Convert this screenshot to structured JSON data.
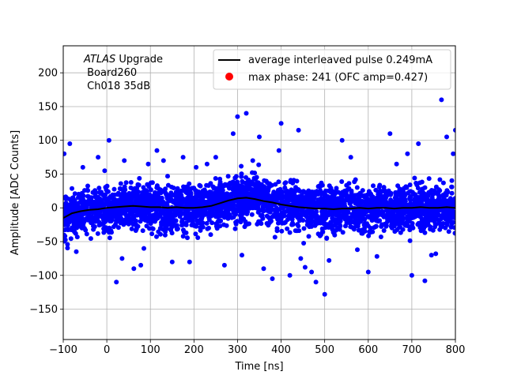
{
  "chart_data": {
    "type": "scatter",
    "title": "",
    "xlabel": "Time [ns]",
    "ylabel": "Amplitude [ADC Counts]",
    "xlim": [
      -100,
      800
    ],
    "ylim": [
      -195,
      240
    ],
    "xticks": [
      -100,
      0,
      100,
      200,
      300,
      400,
      500,
      600,
      700,
      800
    ],
    "yticks": [
      -150,
      -100,
      -50,
      0,
      50,
      100,
      150,
      200
    ],
    "grid": true,
    "legend_position": "top-right",
    "annotation": {
      "line1_italic": "ATLAS",
      "line1_rest": " Upgrade",
      "line2": " Board260",
      "line3": " Ch018 35dB"
    },
    "series": [
      {
        "name": "average interleaved pulse 0.249mA",
        "kind": "line",
        "color": "#000000",
        "x": [
          -100,
          -80,
          -60,
          -40,
          -20,
          0,
          20,
          40,
          60,
          80,
          100,
          120,
          140,
          160,
          180,
          200,
          220,
          240,
          260,
          280,
          300,
          320,
          340,
          360,
          380,
          400,
          420,
          440,
          460,
          480,
          500,
          520,
          540,
          560,
          580,
          600,
          620,
          640,
          660,
          680,
          700,
          720,
          740,
          760,
          780,
          800
        ],
        "y": [
          -15,
          -8,
          -5,
          -3,
          -2,
          0,
          1,
          2,
          3,
          2,
          1,
          1,
          0,
          1,
          0,
          0,
          1,
          3,
          7,
          11,
          14,
          15,
          13,
          10,
          8,
          5,
          3,
          1,
          0,
          -1,
          -1,
          -2,
          -1,
          -1,
          0,
          -1,
          0,
          0,
          -1,
          0,
          0,
          1,
          0,
          0,
          1,
          0
        ]
      },
      {
        "name": "max phase: 241 (OFC amp=0.427)",
        "kind": "marker",
        "color": "#ff0000",
        "x": [],
        "y": []
      },
      {
        "name": "",
        "kind": "scatter",
        "color": "#0000ff",
        "noise_sigma": 22,
        "outliers_x": [
          -98,
          -85,
          -55,
          -20,
          -5,
          5,
          22,
          40,
          62,
          78,
          95,
          115,
          150,
          175,
          230,
          290,
          300,
          320,
          350,
          380,
          400,
          420,
          440,
          470,
          480,
          500,
          540,
          600,
          650,
          700,
          715,
          730,
          768,
          780,
          795,
          800,
          35,
          130,
          190,
          250,
          270,
          310,
          360,
          395,
          455,
          510,
          560,
          620,
          690,
          745,
          -70,
          85,
          205,
          335,
          445,
          575,
          665,
          755
        ],
        "outliers_y": [
          80,
          95,
          60,
          75,
          55,
          100,
          -110,
          70,
          -90,
          -85,
          65,
          85,
          -80,
          75,
          65,
          110,
          135,
          140,
          105,
          -105,
          125,
          -100,
          115,
          -95,
          -110,
          -128,
          100,
          -95,
          110,
          -100,
          95,
          -108,
          160,
          105,
          80,
          115,
          -75,
          70,
          -80,
          75,
          -85,
          -70,
          -90,
          85,
          -88,
          -78,
          75,
          -72,
          80,
          -70,
          -65,
          -60,
          60,
          70,
          -75,
          -62,
          65,
          -68
        ]
      }
    ]
  }
}
